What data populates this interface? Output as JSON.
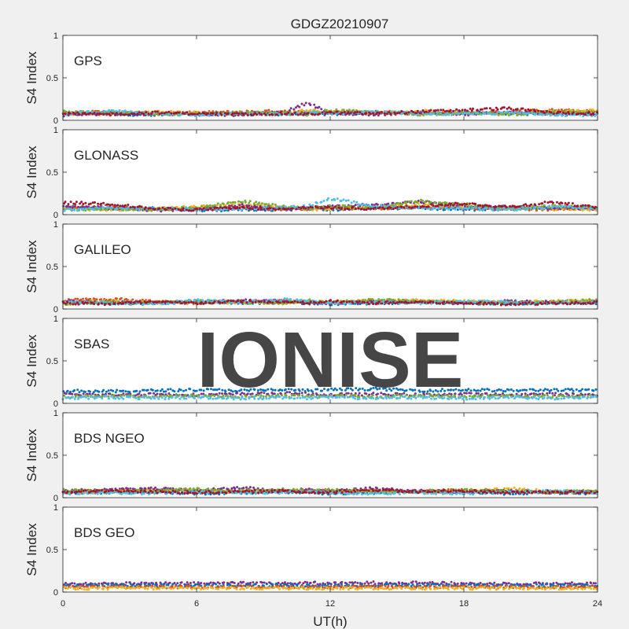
{
  "figure": {
    "title": "GDGZ20210907",
    "watermark": "IONISE",
    "xlabel": "UT(h)",
    "xticks": [
      0,
      6,
      12,
      18,
      24
    ],
    "xlim": [
      0,
      24
    ]
  },
  "colors": {
    "background": "#f0f0f0",
    "axes_bg": "#ffffff",
    "watermark": "#e6e6e6",
    "series_palette": [
      "#0072BD",
      "#D95319",
      "#EDB120",
      "#7E2F8E",
      "#77AC30",
      "#4DBEEE",
      "#A2142F"
    ]
  },
  "chart_data": [
    {
      "type": "scatter",
      "label": "GPS",
      "ylabel": "S4 Index",
      "ylim": [
        0,
        1
      ],
      "yticks": [
        0,
        0.5,
        1
      ],
      "xlim": [
        0,
        24
      ],
      "x": [
        0,
        2,
        4,
        6,
        8,
        10,
        11,
        12,
        14,
        16,
        18,
        20,
        22,
        24
      ],
      "series": [
        {
          "color": "#0072BD",
          "values": [
            0.07,
            0.08,
            0.06,
            0.07,
            0.08,
            0.07,
            0.08,
            0.07,
            0.09,
            0.08,
            0.1,
            0.08,
            0.07,
            0.08
          ]
        },
        {
          "color": "#D95319",
          "values": [
            0.09,
            0.1,
            0.08,
            0.09,
            0.1,
            0.11,
            0.09,
            0.1,
            0.1,
            0.09,
            0.08,
            0.1,
            0.12,
            0.1
          ]
        },
        {
          "color": "#EDB120",
          "values": [
            0.08,
            0.07,
            0.1,
            0.09,
            0.07,
            0.09,
            0.12,
            0.1,
            0.08,
            0.11,
            0.09,
            0.08,
            0.1,
            0.12
          ]
        },
        {
          "color": "#7E2F8E",
          "values": [
            0.06,
            0.08,
            0.07,
            0.08,
            0.06,
            0.1,
            0.21,
            0.08,
            0.07,
            0.09,
            0.07,
            0.09,
            0.08,
            0.07
          ]
        },
        {
          "color": "#77AC30",
          "values": [
            0.1,
            0.09,
            0.08,
            0.07,
            0.09,
            0.08,
            0.07,
            0.12,
            0.09,
            0.07,
            0.09,
            0.07,
            0.09,
            0.09
          ]
        },
        {
          "color": "#4DBEEE",
          "values": [
            0.07,
            0.11,
            0.09,
            0.06,
            0.08,
            0.07,
            0.09,
            0.08,
            0.1,
            0.08,
            0.07,
            0.09,
            0.07,
            0.06
          ]
        },
        {
          "color": "#A2142F",
          "values": [
            0.08,
            0.07,
            0.09,
            0.08,
            0.07,
            0.08,
            0.07,
            0.09,
            0.08,
            0.1,
            0.12,
            0.14,
            0.09,
            0.08
          ]
        }
      ]
    },
    {
      "type": "scatter",
      "label": "GLONASS",
      "ylabel": "S4 Index",
      "ylim": [
        0,
        1
      ],
      "yticks": [
        0,
        0.5,
        1
      ],
      "xlim": [
        0,
        24
      ],
      "x": [
        0,
        2,
        4,
        6,
        8,
        10,
        11,
        12,
        14,
        16,
        18,
        20,
        22,
        24
      ],
      "series": [
        {
          "color": "#0072BD",
          "values": [
            0.09,
            0.07,
            0.08,
            0.05,
            0.06,
            0.06,
            0.07,
            0.06,
            0.07,
            0.08,
            0.06,
            0.07,
            0.08,
            0.07
          ]
        },
        {
          "color": "#D95319",
          "values": [
            0.08,
            0.1,
            0.06,
            0.07,
            0.08,
            0.06,
            0.07,
            0.08,
            0.07,
            0.09,
            0.08,
            0.07,
            0.06,
            0.08
          ]
        },
        {
          "color": "#EDB120",
          "values": [
            0.07,
            0.06,
            0.07,
            0.09,
            0.12,
            0.08,
            0.06,
            0.07,
            0.09,
            0.12,
            0.09,
            0.08,
            0.07,
            0.06
          ]
        },
        {
          "color": "#7E2F8E",
          "values": [
            0.1,
            0.08,
            0.05,
            0.06,
            0.11,
            0.07,
            0.08,
            0.09,
            0.12,
            0.15,
            0.1,
            0.09,
            0.08,
            0.07
          ]
        },
        {
          "color": "#77AC30",
          "values": [
            0.06,
            0.07,
            0.06,
            0.08,
            0.16,
            0.09,
            0.07,
            0.1,
            0.08,
            0.16,
            0.12,
            0.07,
            0.1,
            0.08
          ]
        },
        {
          "color": "#4DBEEE",
          "values": [
            0.05,
            0.08,
            0.07,
            0.06,
            0.07,
            0.08,
            0.1,
            0.19,
            0.1,
            0.08,
            0.07,
            0.06,
            0.09,
            0.07
          ]
        },
        {
          "color": "#A2142F",
          "values": [
            0.14,
            0.13,
            0.07,
            0.06,
            0.08,
            0.06,
            0.09,
            0.08,
            0.07,
            0.1,
            0.13,
            0.09,
            0.15,
            0.08
          ]
        }
      ]
    },
    {
      "type": "scatter",
      "label": "GALILEO",
      "ylabel": "S4 Index",
      "ylim": [
        0,
        1
      ],
      "yticks": [
        0,
        0.5,
        1
      ],
      "xlim": [
        0,
        24
      ],
      "x": [
        0,
        2,
        4,
        6,
        8,
        10,
        11,
        12,
        14,
        16,
        18,
        20,
        22,
        24
      ],
      "series": [
        {
          "color": "#0072BD",
          "values": [
            0.08,
            0.07,
            0.07,
            0.09,
            0.07,
            0.08,
            0.07,
            0.06,
            0.07,
            0.08,
            0.07,
            0.06,
            0.07,
            0.07
          ]
        },
        {
          "color": "#D95319",
          "values": [
            0.1,
            0.12,
            0.09,
            0.08,
            0.09,
            0.1,
            0.08,
            0.07,
            0.08,
            0.09,
            0.08,
            0.07,
            0.08,
            0.09
          ]
        },
        {
          "color": "#EDB120",
          "values": [
            0.07,
            0.09,
            0.08,
            0.07,
            0.08,
            0.07,
            0.09,
            0.08,
            0.09,
            0.1,
            0.09,
            0.08,
            0.09,
            0.1
          ]
        },
        {
          "color": "#7E2F8E",
          "values": [
            0.09,
            0.08,
            0.07,
            0.08,
            0.1,
            0.09,
            0.08,
            0.07,
            0.09,
            0.08,
            0.07,
            0.09,
            0.08,
            0.07
          ]
        },
        {
          "color": "#77AC30",
          "values": [
            0.06,
            0.08,
            0.07,
            0.09,
            0.08,
            0.07,
            0.1,
            0.08,
            0.11,
            0.09,
            0.08,
            0.07,
            0.08,
            0.11
          ]
        },
        {
          "color": "#4DBEEE",
          "values": [
            0.08,
            0.07,
            0.06,
            0.1,
            0.08,
            0.11,
            0.09,
            0.07,
            0.08,
            0.07,
            0.09,
            0.08,
            0.07,
            0.08
          ]
        },
        {
          "color": "#A2142F",
          "values": [
            0.07,
            0.06,
            0.08,
            0.07,
            0.09,
            0.08,
            0.07,
            0.09,
            0.07,
            0.08,
            0.07,
            0.06,
            0.07,
            0.08
          ]
        }
      ]
    },
    {
      "type": "scatter",
      "label": "SBAS",
      "ylabel": "S4 Index",
      "ylim": [
        0,
        1
      ],
      "yticks": [
        0,
        0.5,
        1
      ],
      "xlim": [
        0,
        24
      ],
      "x": [
        0,
        2,
        4,
        6,
        8,
        10,
        11,
        12,
        14,
        16,
        18,
        20,
        22,
        24
      ],
      "series": [
        {
          "color": "#0072BD",
          "values": [
            0.15,
            0.14,
            0.15,
            0.16,
            0.15,
            0.16,
            0.15,
            0.16,
            0.17,
            0.15,
            0.16,
            0.15,
            0.16,
            0.15
          ]
        },
        {
          "color": "#7E2F8E",
          "values": [
            0.11,
            0.1,
            0.11,
            0.1,
            0.11,
            0.12,
            0.11,
            0.1,
            0.11,
            0.1,
            0.11,
            0.1,
            0.11,
            0.1
          ]
        },
        {
          "color": "#77AC30",
          "values": [
            0.08,
            0.09,
            0.08,
            0.09,
            0.08,
            0.09,
            0.08,
            0.09,
            0.08,
            0.09,
            0.08,
            0.09,
            0.08,
            0.09
          ]
        },
        {
          "color": "#4DBEEE",
          "values": [
            0.06,
            0.07,
            0.06,
            0.07,
            0.06,
            0.07,
            0.06,
            0.07,
            0.06,
            0.07,
            0.06,
            0.07,
            0.06,
            0.07
          ]
        }
      ]
    },
    {
      "type": "scatter",
      "label": "BDS NGEO",
      "ylabel": "S4 Index",
      "ylim": [
        0,
        1
      ],
      "yticks": [
        0,
        0.5,
        1
      ],
      "xlim": [
        0,
        24
      ],
      "x": [
        0,
        2,
        4,
        6,
        8,
        10,
        11,
        12,
        14,
        16,
        18,
        20,
        22,
        24
      ],
      "series": [
        {
          "color": "#0072BD",
          "values": [
            0.05,
            0.06,
            0.07,
            0.05,
            0.06,
            0.07,
            0.06,
            0.05,
            0.06,
            0.07,
            0.06,
            0.05,
            0.06,
            0.05
          ]
        },
        {
          "color": "#D95319",
          "values": [
            0.07,
            0.08,
            0.09,
            0.07,
            0.08,
            0.07,
            0.09,
            0.08,
            0.07,
            0.08,
            0.09,
            0.07,
            0.06,
            0.08
          ]
        },
        {
          "color": "#EDB120",
          "values": [
            0.06,
            0.07,
            0.1,
            0.08,
            0.07,
            0.09,
            0.08,
            0.07,
            0.08,
            0.06,
            0.07,
            0.11,
            0.07,
            0.06
          ]
        },
        {
          "color": "#7E2F8E",
          "values": [
            0.08,
            0.09,
            0.11,
            0.08,
            0.12,
            0.07,
            0.1,
            0.08,
            0.11,
            0.08,
            0.07,
            0.08,
            0.06,
            0.07
          ]
        },
        {
          "color": "#77AC30",
          "values": [
            0.09,
            0.07,
            0.08,
            0.1,
            0.08,
            0.1,
            0.08,
            0.09,
            0.08,
            0.07,
            0.09,
            0.08,
            0.07,
            0.08
          ]
        },
        {
          "color": "#4DBEEE",
          "values": [
            0.05,
            0.06,
            0.05,
            0.07,
            0.06,
            0.06,
            0.07,
            0.06,
            0.05,
            0.06,
            0.05,
            0.06,
            0.08,
            0.06
          ]
        },
        {
          "color": "#A2142F",
          "values": [
            0.06,
            0.08,
            0.07,
            0.06,
            0.07,
            0.08,
            0.06,
            0.07,
            0.09,
            0.07,
            0.08,
            0.06,
            0.07,
            0.06
          ]
        }
      ]
    },
    {
      "type": "scatter",
      "label": "BDS GEO",
      "ylabel": "S4 Index",
      "ylim": [
        0,
        1
      ],
      "yticks": [
        0,
        0.5,
        1
      ],
      "xlim": [
        0,
        24
      ],
      "x": [
        0,
        2,
        4,
        6,
        8,
        10,
        11,
        12,
        14,
        16,
        18,
        20,
        22,
        24
      ],
      "series": [
        {
          "color": "#7E2F8E",
          "values": [
            0.1,
            0.1,
            0.1,
            0.1,
            0.11,
            0.1,
            0.11,
            0.1,
            0.11,
            0.11,
            0.1,
            0.1,
            0.1,
            0.1
          ]
        },
        {
          "color": "#0072BD",
          "values": [
            0.08,
            0.08,
            0.08,
            0.08,
            0.08,
            0.08,
            0.08,
            0.08,
            0.08,
            0.08,
            0.08,
            0.08,
            0.08,
            0.08
          ]
        },
        {
          "color": "#D95319",
          "values": [
            0.06,
            0.06,
            0.06,
            0.06,
            0.06,
            0.06,
            0.06,
            0.06,
            0.06,
            0.06,
            0.06,
            0.06,
            0.06,
            0.06
          ]
        },
        {
          "color": "#EDB120",
          "values": [
            0.045,
            0.045,
            0.045,
            0.045,
            0.045,
            0.045,
            0.045,
            0.045,
            0.045,
            0.045,
            0.045,
            0.045,
            0.045,
            0.045
          ]
        }
      ]
    }
  ]
}
